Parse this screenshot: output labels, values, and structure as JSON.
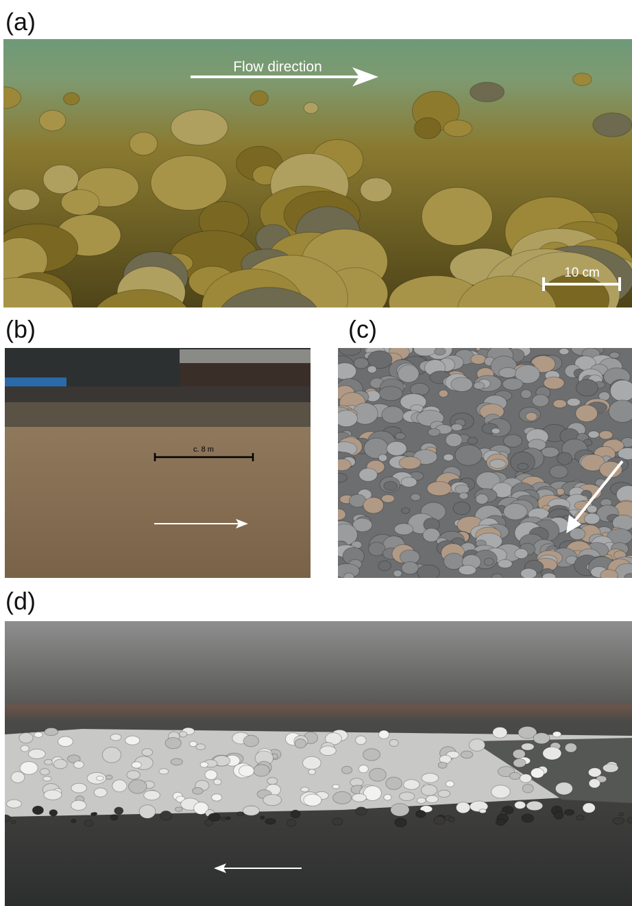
{
  "panels": [
    {
      "label": "(a)",
      "flow_label": "Flow direction",
      "scale_label": "10 cm"
    },
    {
      "label": "(b)",
      "scale_label": "c. 8 m"
    },
    {
      "label": "(c)"
    },
    {
      "label": "(d)"
    }
  ]
}
